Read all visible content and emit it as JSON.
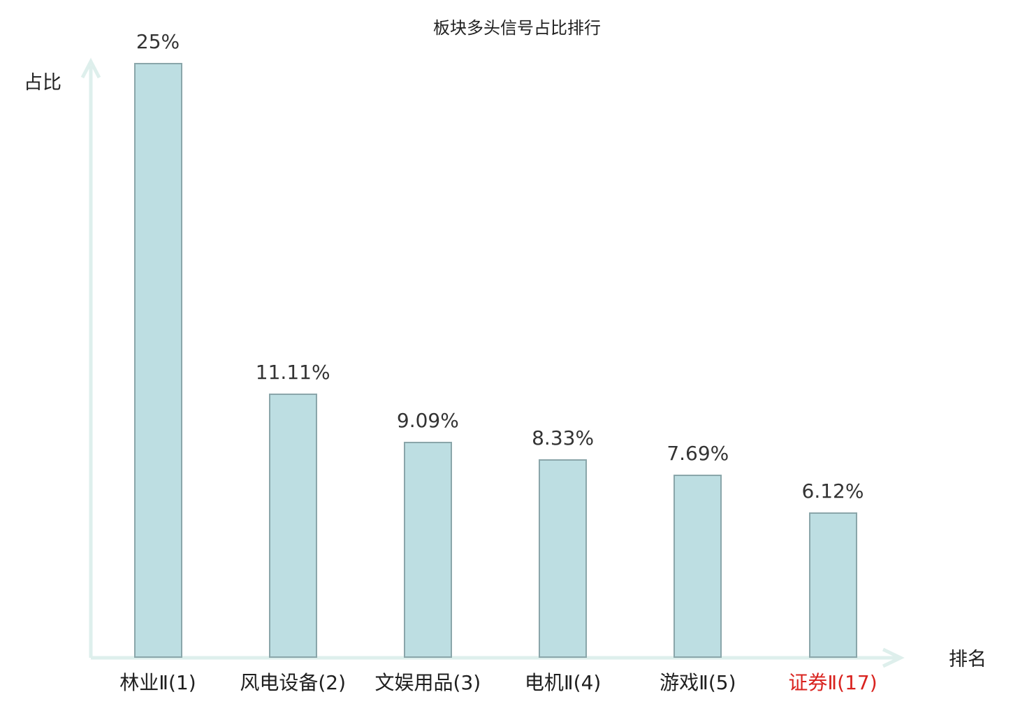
{
  "chart_data": {
    "type": "bar",
    "title": "板块多头信号占比排行",
    "xlabel": "排名",
    "ylabel": "占比",
    "categories": [
      "林业Ⅱ(1)",
      "风电设备(2)",
      "文娱用品(3)",
      "电机Ⅱ(4)",
      "游戏Ⅱ(5)",
      "证券Ⅱ(17)"
    ],
    "values": [
      25,
      11.11,
      9.09,
      8.33,
      7.69,
      6.12
    ],
    "value_labels": [
      "25%",
      "11.11%",
      "9.09%",
      "8.33%",
      "7.69%",
      "6.12%"
    ],
    "highlight_index": 5,
    "ylim": [
      0,
      25
    ],
    "grid": false,
    "legend": "none",
    "colors": {
      "bar_fill": "#bddee2",
      "bar_border": "#8aa6aa",
      "axis": "#deefec",
      "text": "#333333",
      "highlight": "#d9231f"
    }
  }
}
